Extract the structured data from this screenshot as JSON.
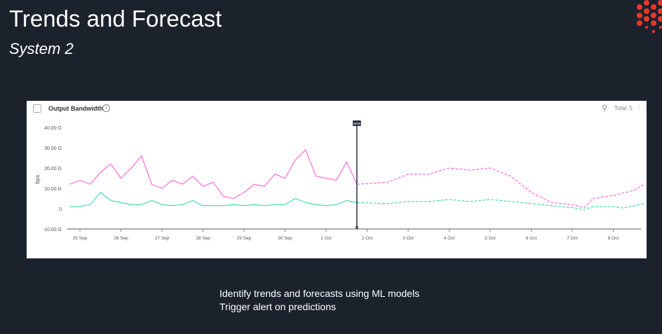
{
  "title": "Trends and Forecast",
  "subtitle": "System 2",
  "colors": {
    "background": "#1c222b",
    "logo": "#e8362c",
    "series_pink": "#ff5fd6",
    "series_green": "#3ed6a0",
    "now_marker": "#2b3142"
  },
  "panel": {
    "title": "Output Bandwidth",
    "info_icon": "info-icon",
    "search_icon": "search-icon",
    "total_label": "Total: 5",
    "drag_icon": "drag-handle-icon"
  },
  "chart_data": {
    "type": "line",
    "ylabel": "bps",
    "ylim": [
      -10,
      40
    ],
    "y_ticks": [
      "40.00 G",
      "30.00 G",
      "20.00 G",
      "10.00 G",
      "0",
      "-10.00 G"
    ],
    "y_tick_values": [
      40,
      30,
      20,
      10,
      0,
      -10
    ],
    "x_ticks": [
      "25 Sep",
      "26 Sep",
      "27 Sep",
      "28 Sep",
      "29 Sep",
      "30 Sep",
      "1 Oct",
      "2 Oct",
      "3 Oct",
      "4 Oct",
      "5 Oct",
      "6 Oct",
      "7 Oct",
      "8 Oct"
    ],
    "now_label": "NOW",
    "now_time": "1 Oct 18:00",
    "grid": false,
    "series": [
      {
        "color": "#ff5fd6",
        "style": "solid",
        "points": [
          [
            "24 Sep 18:00",
            12
          ],
          [
            "25 Sep 00:00",
            14
          ],
          [
            "25 Sep 06:00",
            12
          ],
          [
            "25 Sep 12:00",
            18
          ],
          [
            "25 Sep 18:00",
            22
          ],
          [
            "26 Sep 00:00",
            15
          ],
          [
            "26 Sep 06:00",
            20
          ],
          [
            "26 Sep 12:00",
            26
          ],
          [
            "26 Sep 18:00",
            12
          ],
          [
            "27 Sep 00:00",
            10
          ],
          [
            "27 Sep 06:00",
            14
          ],
          [
            "27 Sep 12:00",
            12
          ],
          [
            "27 Sep 18:00",
            16
          ],
          [
            "28 Sep 00:00",
            11
          ],
          [
            "28 Sep 06:00",
            13
          ],
          [
            "28 Sep 12:00",
            6
          ],
          [
            "28 Sep 18:00",
            5
          ],
          [
            "29 Sep 00:00",
            8
          ],
          [
            "29 Sep 06:00",
            12
          ],
          [
            "29 Sep 12:00",
            11
          ],
          [
            "29 Sep 18:00",
            17
          ],
          [
            "30 Sep 00:00",
            15
          ],
          [
            "30 Sep 06:00",
            24
          ],
          [
            "30 Sep 12:00",
            29
          ],
          [
            "30 Sep 18:00",
            16
          ],
          [
            "1 Oct 00:00",
            15
          ],
          [
            "1 Oct 06:00",
            14
          ],
          [
            "1 Oct 12:00",
            23
          ],
          [
            "1 Oct 18:00",
            12
          ]
        ]
      },
      {
        "color": "#ff5fd6",
        "style": "dashed",
        "points": [
          [
            "1 Oct 18:00",
            12
          ],
          [
            "2 Oct 12:00",
            13
          ],
          [
            "3 Oct 00:00",
            17
          ],
          [
            "3 Oct 12:00",
            17
          ],
          [
            "4 Oct 00:00",
            20
          ],
          [
            "4 Oct 12:00",
            19
          ],
          [
            "5 Oct 00:00",
            20
          ],
          [
            "5 Oct 12:00",
            16
          ],
          [
            "6 Oct 00:00",
            8
          ],
          [
            "6 Oct 12:00",
            3
          ],
          [
            "7 Oct 00:00",
            2
          ],
          [
            "7 Oct 07:00",
            0.5
          ],
          [
            "7 Oct 12:00",
            5
          ],
          [
            "8 Oct 00:00",
            6.5
          ],
          [
            "8 Oct 12:00",
            9
          ],
          [
            "8 Oct 18:00",
            12
          ]
        ]
      },
      {
        "color": "#3ed6a0",
        "style": "solid",
        "points": [
          [
            "24 Sep 18:00",
            1
          ],
          [
            "25 Sep 00:00",
            1
          ],
          [
            "25 Sep 06:00",
            2
          ],
          [
            "25 Sep 12:00",
            8
          ],
          [
            "25 Sep 18:00",
            4
          ],
          [
            "26 Sep 00:00",
            3
          ],
          [
            "26 Sep 06:00",
            2
          ],
          [
            "26 Sep 12:00",
            2
          ],
          [
            "26 Sep 18:00",
            4
          ],
          [
            "27 Sep 00:00",
            2
          ],
          [
            "27 Sep 06:00",
            1.5
          ],
          [
            "27 Sep 12:00",
            2
          ],
          [
            "27 Sep 18:00",
            4
          ],
          [
            "28 Sep 00:00",
            1.5
          ],
          [
            "28 Sep 06:00",
            1.5
          ],
          [
            "28 Sep 12:00",
            1.5
          ],
          [
            "28 Sep 18:00",
            2
          ],
          [
            "29 Sep 00:00",
            1.5
          ],
          [
            "29 Sep 06:00",
            2
          ],
          [
            "29 Sep 12:00",
            1.5
          ],
          [
            "29 Sep 18:00",
            2
          ],
          [
            "30 Sep 00:00",
            2
          ],
          [
            "30 Sep 06:00",
            5
          ],
          [
            "30 Sep 12:00",
            3
          ],
          [
            "30 Sep 18:00",
            2
          ],
          [
            "1 Oct 00:00",
            1.5
          ],
          [
            "1 Oct 06:00",
            2
          ],
          [
            "1 Oct 12:00",
            4
          ],
          [
            "1 Oct 18:00",
            3
          ]
        ]
      },
      {
        "color": "#3ed6a0",
        "style": "dashed",
        "points": [
          [
            "1 Oct 18:00",
            3
          ],
          [
            "2 Oct 12:00",
            2.5
          ],
          [
            "3 Oct 00:00",
            3.5
          ],
          [
            "3 Oct 12:00",
            3.5
          ],
          [
            "4 Oct 00:00",
            4.5
          ],
          [
            "4 Oct 12:00",
            3.5
          ],
          [
            "5 Oct 00:00",
            4.5
          ],
          [
            "5 Oct 12:00",
            3.5
          ],
          [
            "6 Oct 00:00",
            2.5
          ],
          [
            "6 Oct 12:00",
            1.5
          ],
          [
            "7 Oct 00:00",
            0.5
          ],
          [
            "7 Oct 07:00",
            -0.5
          ],
          [
            "7 Oct 12:00",
            1
          ],
          [
            "8 Oct 00:00",
            1
          ],
          [
            "8 Oct 06:00",
            0.3
          ],
          [
            "8 Oct 18:00",
            2.5
          ]
        ]
      }
    ]
  },
  "bottom_text": {
    "line1": "Identify trends and forecasts using ML models",
    "line2": "Trigger alert on predictions"
  }
}
